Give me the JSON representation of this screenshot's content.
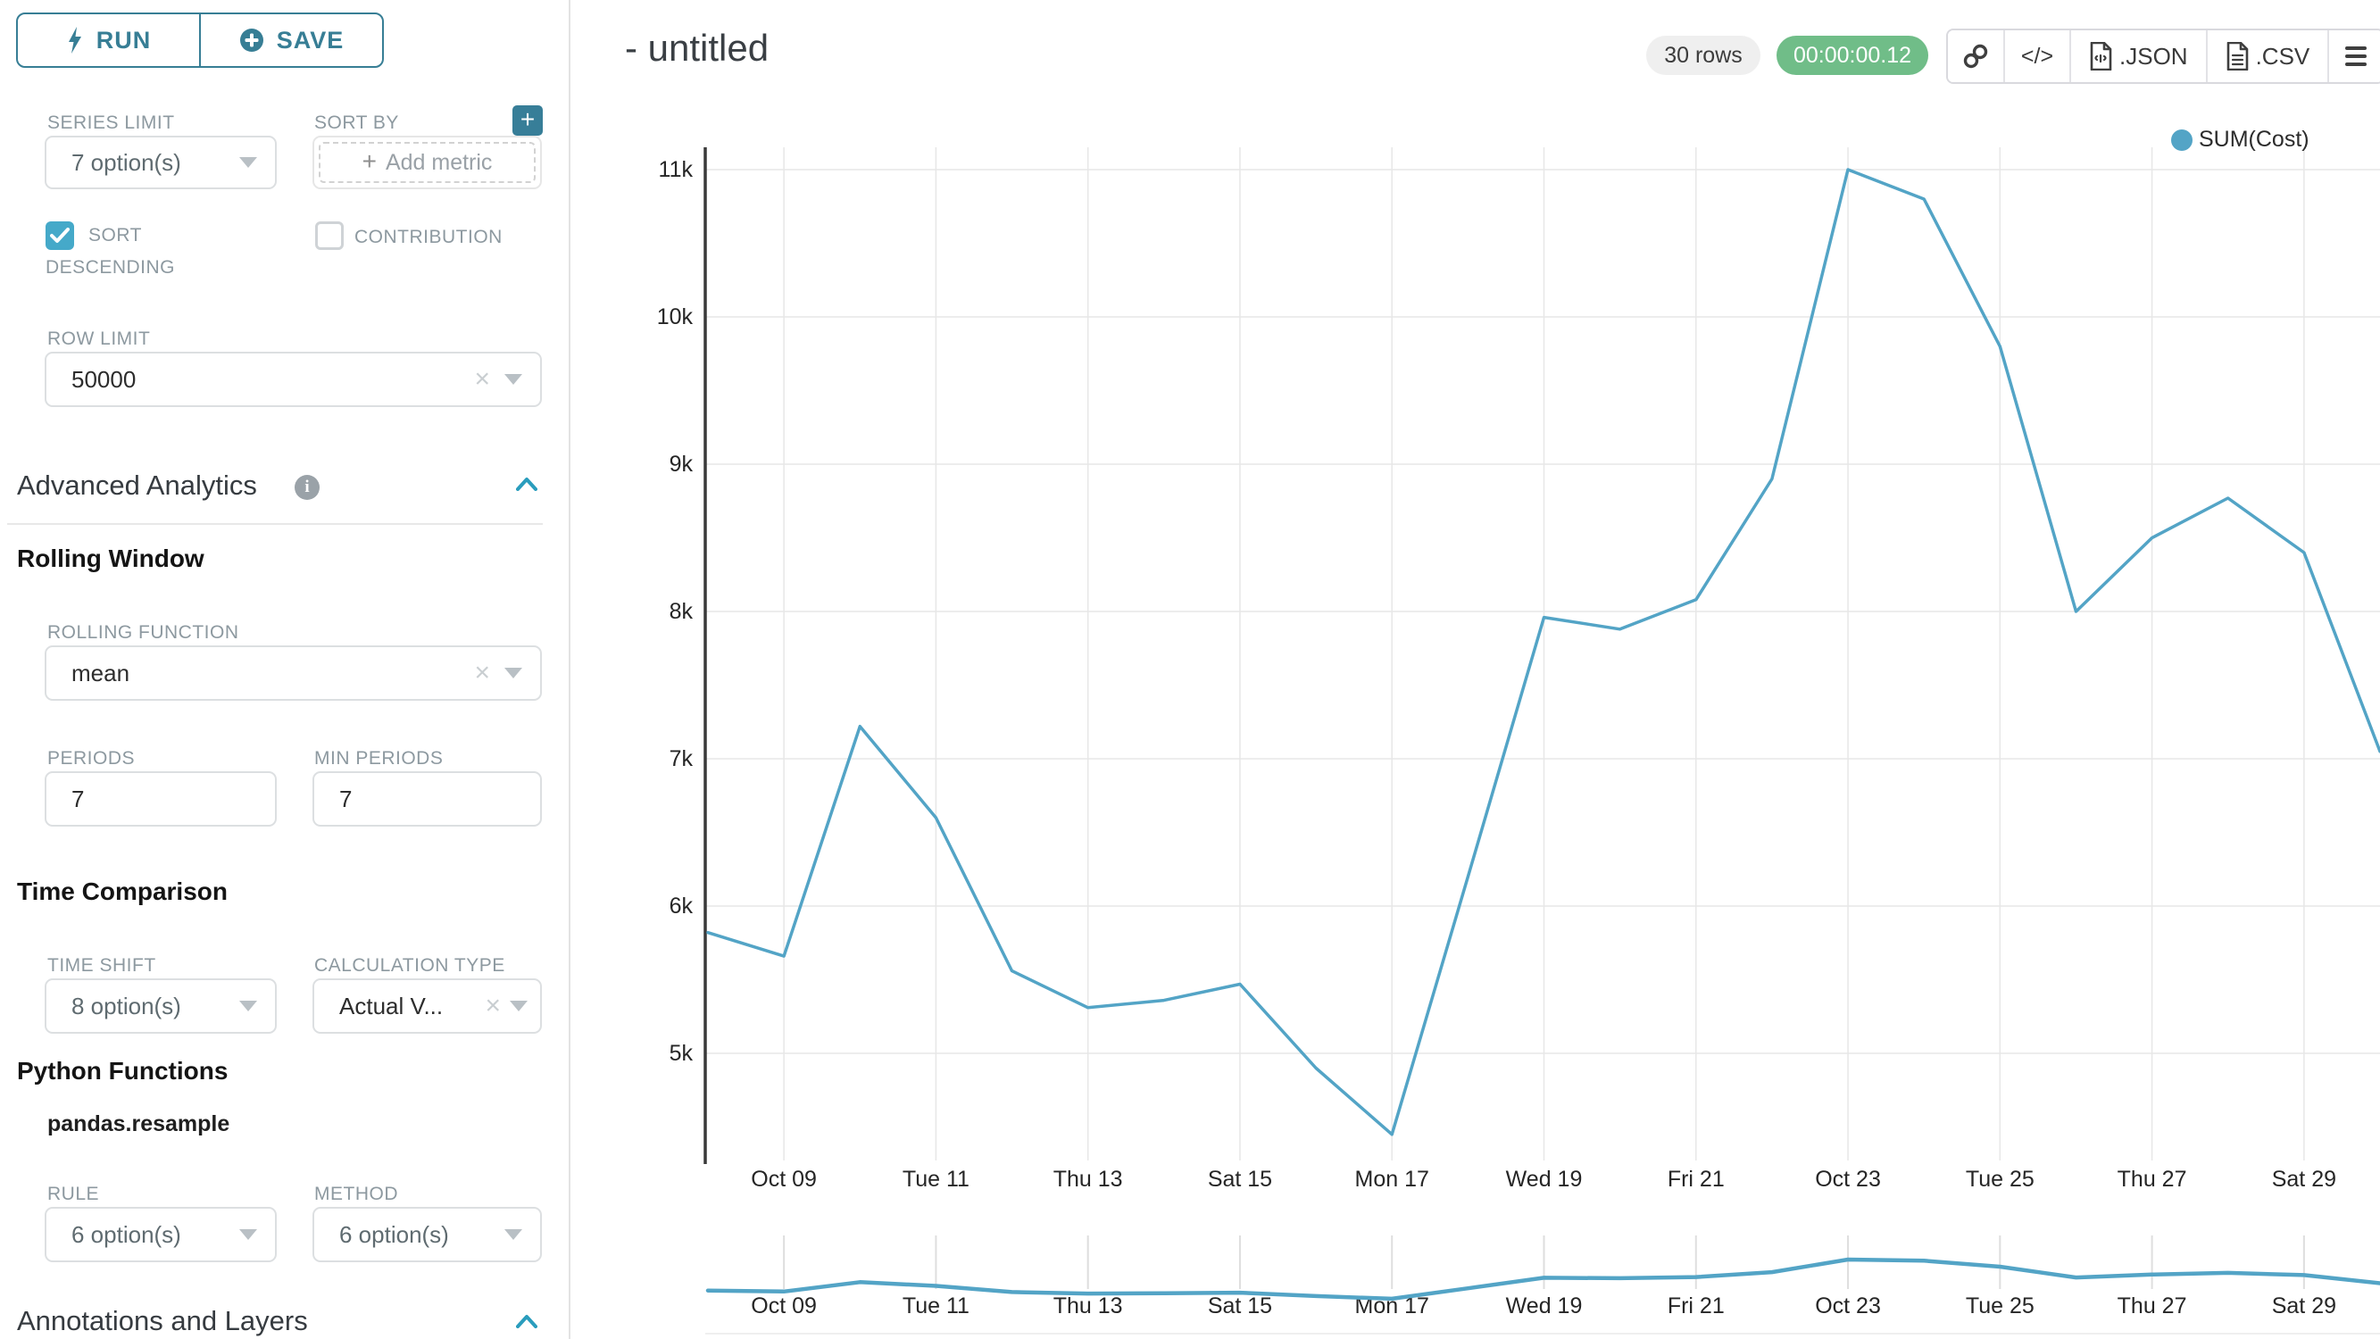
{
  "sidebar": {
    "run_label": "RUN",
    "save_label": "SAVE",
    "series_limit_label": "SERIES LIMIT",
    "series_limit_value": "7 option(s)",
    "sort_by_label": "SORT BY",
    "sort_by_placeholder": "Add metric",
    "sort_descending_label_line1": "SORT",
    "sort_descending_label_line2": "DESCENDING",
    "contribution_label": "CONTRIBUTION",
    "row_limit_label": "ROW LIMIT",
    "row_limit_value": "50000",
    "advanced_analytics_title": "Advanced Analytics",
    "rolling_window_title": "Rolling Window",
    "rolling_function_label": "ROLLING FUNCTION",
    "rolling_function_value": "mean",
    "periods_label": "PERIODS",
    "periods_value": "7",
    "min_periods_label": "MIN PERIODS",
    "min_periods_value": "7",
    "time_comparison_title": "Time Comparison",
    "time_shift_label": "TIME SHIFT",
    "time_shift_value": "8 option(s)",
    "calculation_type_label": "CALCULATION TYPE",
    "calculation_type_value": "Actual V...",
    "python_functions_title": "Python Functions",
    "python_function_name": "pandas.resample",
    "rule_label": "RULE",
    "rule_value": "6 option(s)",
    "method_label": "METHOD",
    "method_value": "6 option(s)",
    "annotations_title": "Annotations and Layers"
  },
  "header": {
    "title": "- untitled",
    "rows_badge": "30 rows",
    "time_badge": "00:00:00.12"
  },
  "toolbar": {
    "code_glyph": "</>",
    "json_label": ".JSON",
    "csv_label": ".CSV"
  },
  "colors": {
    "accent_teal": "#377e95",
    "bright_teal": "#45a9c9",
    "line_blue": "#53a4c6",
    "badge_green": "#70bd88",
    "grid_gray": "#e7e7e7"
  },
  "chart_data": {
    "type": "line",
    "title": "",
    "xlabel": "",
    "ylabel": "",
    "grid": true,
    "legend_position": "top-right",
    "ylim": [
      5000,
      11000
    ],
    "y_tick_labels": [
      "11k",
      "10k",
      "9k",
      "8k",
      "7k",
      "6k",
      "5k"
    ],
    "x": [
      "Oct 08",
      "Oct 09",
      "Oct 10",
      "Oct 11",
      "Oct 12",
      "Oct 13",
      "Oct 14",
      "Oct 15",
      "Oct 16",
      "Oct 17",
      "Oct 18",
      "Oct 19",
      "Oct 20",
      "Oct 21",
      "Oct 22",
      "Oct 23",
      "Oct 24",
      "Oct 25",
      "Oct 26",
      "Oct 27",
      "Oct 28",
      "Oct 29",
      "Oct 30"
    ],
    "x_tick_labels": [
      "Oct 09",
      "Tue 11",
      "Thu 13",
      "Sat 15",
      "Mon 17",
      "Wed 19",
      "Fri 21",
      "Oct 23",
      "Tue 25",
      "Thu 27",
      "Sat 29"
    ],
    "x_tick_indices": [
      1,
      3,
      5,
      7,
      9,
      11,
      13,
      15,
      17,
      19,
      21
    ],
    "series": [
      {
        "name": "SUM(Cost)",
        "color": "#53a4c6",
        "values": [
          5820,
          5660,
          7220,
          6600,
          5560,
          5310,
          5360,
          5470,
          4900,
          4450,
          6200,
          7960,
          7880,
          8080,
          8900,
          11000,
          10800,
          9800,
          8000,
          8500,
          8770,
          8400,
          7050
        ]
      }
    ],
    "mini_preview": true
  }
}
